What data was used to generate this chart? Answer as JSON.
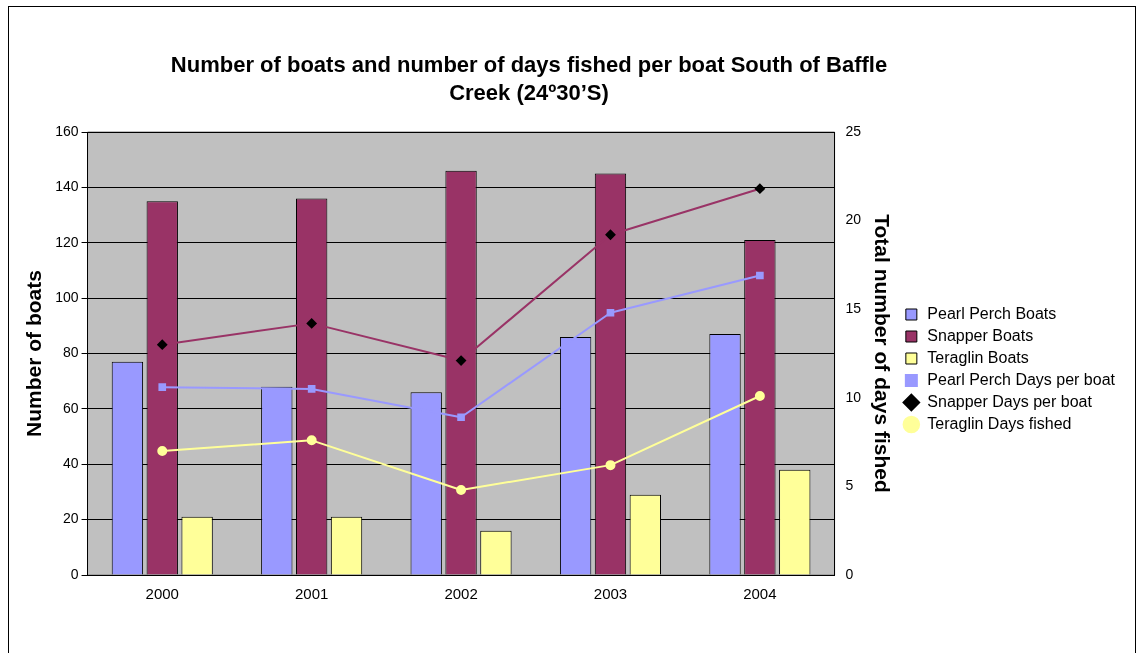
{
  "chart_data": {
    "type": "bar",
    "title": "Number of boats and number of days fished per boat South of Baffle Creek (24º30’S)",
    "categories": [
      "2000",
      "2001",
      "2002",
      "2003",
      "2004"
    ],
    "ylabel": "Number of boats",
    "y2label": "Total number of days fished",
    "ylim": [
      0,
      160
    ],
    "yticks": [
      0,
      20,
      40,
      60,
      80,
      100,
      120,
      140,
      160
    ],
    "y2lim": [
      0,
      25
    ],
    "y2ticks": [
      0,
      5,
      10,
      15,
      20,
      25
    ],
    "grid": "y",
    "legend": "right",
    "series": [
      {
        "name": "Pearl Perch Boats",
        "color": "#9999ff",
        "values": [
          77,
          68,
          66,
          86,
          87
        ]
      },
      {
        "name": "Snapper Boats",
        "color": "#993366",
        "values": [
          135,
          136,
          146,
          145,
          121
        ]
      },
      {
        "name": "Teraglin Boats",
        "color": "#ffff99",
        "values": [
          21,
          21,
          16,
          29,
          38
        ]
      },
      {
        "name": "Pearl Perch Days per boat",
        "type": "line",
        "axis": "y2",
        "marker": "square",
        "color": "#9999ff",
        "values": [
          10.6,
          10.5,
          8.9,
          14.8,
          16.9
        ]
      },
      {
        "name": "Snapper Days per boat",
        "type": "line",
        "axis": "y2",
        "marker": "diamond",
        "color": "#993366",
        "values": [
          13.0,
          14.2,
          12.1,
          19.2,
          21.8
        ]
      },
      {
        "name": "Teraglin Days fished",
        "type": "line",
        "axis": "y2",
        "marker": "circle",
        "color": "#ffff99",
        "values": [
          7.0,
          7.6,
          4.8,
          6.2,
          10.1
        ]
      }
    ]
  }
}
